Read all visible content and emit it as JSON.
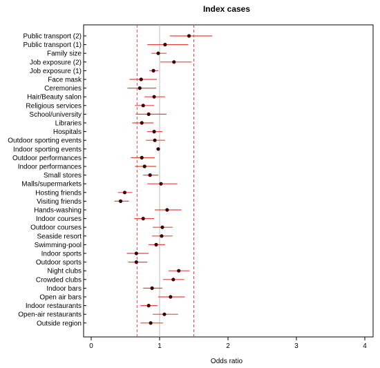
{
  "chart_data": {
    "type": "scatter",
    "subtype": "forest-plot",
    "title": "Index cases",
    "xlabel": "Odds ratio",
    "ylabel": "",
    "xlim": [
      0,
      4
    ],
    "xticks": [
      "0",
      "1",
      "2",
      "3",
      "4"
    ],
    "reference_line": 1,
    "dashed_lines": [
      0.67,
      1.5
    ],
    "grid": false,
    "colors": {
      "point": "#3a0000",
      "ci": "#e8453c",
      "reference": "#bdbdbd",
      "dashed": "#e8453c"
    },
    "rows": [
      {
        "label": "Public transport (2)",
        "or": 1.43,
        "lo": 1.15,
        "hi": 1.77
      },
      {
        "label": "Public transport (1)",
        "or": 1.08,
        "lo": 0.82,
        "hi": 1.42
      },
      {
        "label": "Family size",
        "or": 0.98,
        "lo": 0.88,
        "hi": 1.1
      },
      {
        "label": "Job exposure (2)",
        "or": 1.21,
        "lo": 1.01,
        "hi": 1.47
      },
      {
        "label": "Job exposure (1)",
        "or": 0.91,
        "lo": 0.85,
        "hi": 0.98
      },
      {
        "label": "Face mask",
        "or": 0.73,
        "lo": 0.56,
        "hi": 0.96
      },
      {
        "label": "Ceremonies",
        "or": 0.71,
        "lo": 0.53,
        "hi": 0.95
      },
      {
        "label": "Hair/Beauty salon",
        "or": 0.92,
        "lo": 0.78,
        "hi": 1.08
      },
      {
        "label": "Religious services",
        "or": 0.76,
        "lo": 0.64,
        "hi": 0.92
      },
      {
        "label": "School/university",
        "or": 0.84,
        "lo": 0.65,
        "hi": 1.1
      },
      {
        "label": "Libraries",
        "or": 0.74,
        "lo": 0.6,
        "hi": 0.91
      },
      {
        "label": "Hospitals",
        "or": 0.92,
        "lo": 0.82,
        "hi": 1.04
      },
      {
        "label": "Outdoor sporting events",
        "or": 0.93,
        "lo": 0.8,
        "hi": 1.08
      },
      {
        "label": "Indoor sporting events",
        "or": 0.98,
        "lo": 0.95,
        "hi": 1.0
      },
      {
        "label": "Outdoor performances",
        "or": 0.74,
        "lo": 0.58,
        "hi": 0.93
      },
      {
        "label": "Indoor performances",
        "or": 0.78,
        "lo": 0.64,
        "hi": 0.95
      },
      {
        "label": "Small stores",
        "or": 0.86,
        "lo": 0.76,
        "hi": 0.98
      },
      {
        "label": "Malls/supermarkets",
        "or": 1.02,
        "lo": 0.82,
        "hi": 1.26
      },
      {
        "label": "Hosting friends",
        "or": 0.49,
        "lo": 0.39,
        "hi": 0.6
      },
      {
        "label": "Visiting friends",
        "or": 0.43,
        "lo": 0.34,
        "hi": 0.55
      },
      {
        "label": "Hands-washing",
        "or": 1.11,
        "lo": 0.93,
        "hi": 1.32
      },
      {
        "label": "Indoor courses",
        "or": 0.76,
        "lo": 0.63,
        "hi": 0.92
      },
      {
        "label": "Outdoor courses",
        "or": 1.04,
        "lo": 0.9,
        "hi": 1.19
      },
      {
        "label": "Seaside resort",
        "or": 1.03,
        "lo": 0.89,
        "hi": 1.19
      },
      {
        "label": "Swimming-pool",
        "or": 0.95,
        "lo": 0.84,
        "hi": 1.08
      },
      {
        "label": "Indoor sports",
        "or": 0.66,
        "lo": 0.52,
        "hi": 0.84
      },
      {
        "label": "Outdoor sports",
        "or": 0.66,
        "lo": 0.54,
        "hi": 0.82
      },
      {
        "label": "Night clubs",
        "or": 1.28,
        "lo": 1.13,
        "hi": 1.44
      },
      {
        "label": "Crowded clubs",
        "or": 1.2,
        "lo": 1.05,
        "hi": 1.36
      },
      {
        "label": "Indoor bars",
        "or": 0.89,
        "lo": 0.76,
        "hi": 1.04
      },
      {
        "label": "Open air bars",
        "or": 1.16,
        "lo": 0.98,
        "hi": 1.37
      },
      {
        "label": "Indoor restaurants",
        "or": 0.84,
        "lo": 0.72,
        "hi": 0.97
      },
      {
        "label": "Open-air restaurants",
        "or": 1.07,
        "lo": 0.9,
        "hi": 1.27
      },
      {
        "label": "Outside region",
        "or": 0.87,
        "lo": 0.72,
        "hi": 1.05
      }
    ]
  }
}
